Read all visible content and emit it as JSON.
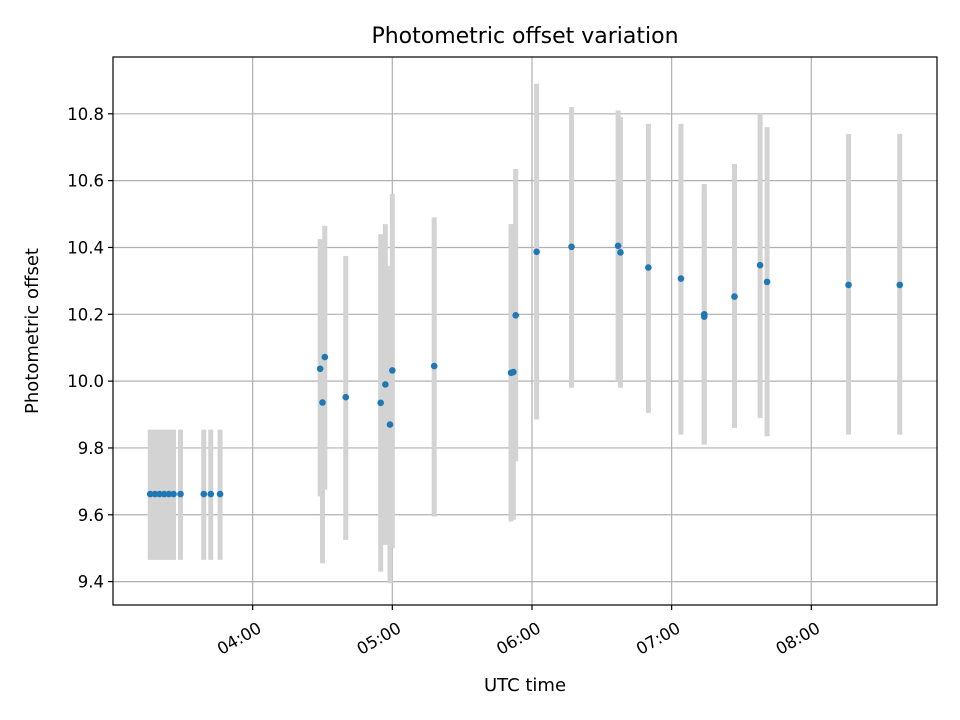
{
  "chart_data": {
    "type": "scatter",
    "title": "Photometric offset variation",
    "xlabel": "UTC time",
    "ylabel": "Photometric offset",
    "x_unit": "UTC time of day (HH:MM)",
    "xlim": [
      "03:00",
      "08:54"
    ],
    "ylim": [
      9.33,
      10.97
    ],
    "x_ticks": [
      "04:00",
      "05:00",
      "06:00",
      "07:00",
      "08:00"
    ],
    "y_ticks": [
      9.4,
      9.6,
      9.8,
      10.0,
      10.2,
      10.4,
      10.6,
      10.8
    ],
    "grid": true,
    "marker_color": "#1f77b4",
    "errorbar_color": "#d3d3d3",
    "points": [
      {
        "x": "03:16",
        "y": 9.662,
        "ylow": 9.465,
        "yhigh": 9.855
      },
      {
        "x": "03:18",
        "y": 9.662,
        "ylow": 9.465,
        "yhigh": 9.855
      },
      {
        "x": "03:20",
        "y": 9.662,
        "ylow": 9.465,
        "yhigh": 9.855
      },
      {
        "x": "03:22",
        "y": 9.662,
        "ylow": 9.465,
        "yhigh": 9.855
      },
      {
        "x": "03:24",
        "y": 9.662,
        "ylow": 9.465,
        "yhigh": 9.855
      },
      {
        "x": "03:26",
        "y": 9.662,
        "ylow": 9.465,
        "yhigh": 9.855
      },
      {
        "x": "03:29",
        "y": 9.662,
        "ylow": 9.465,
        "yhigh": 9.855
      },
      {
        "x": "03:39",
        "y": 9.662,
        "ylow": 9.465,
        "yhigh": 9.855
      },
      {
        "x": "03:42",
        "y": 9.662,
        "ylow": 9.465,
        "yhigh": 9.855
      },
      {
        "x": "03:46",
        "y": 9.662,
        "ylow": 9.465,
        "yhigh": 9.855
      },
      {
        "x": "04:29",
        "y": 10.037,
        "ylow": 9.655,
        "yhigh": 10.425
      },
      {
        "x": "04:30",
        "y": 9.936,
        "ylow": 9.455,
        "yhigh": 10.415
      },
      {
        "x": "04:31",
        "y": 10.072,
        "ylow": 9.675,
        "yhigh": 10.465
      },
      {
        "x": "04:40",
        "y": 9.952,
        "ylow": 9.525,
        "yhigh": 10.375
      },
      {
        "x": "04:55",
        "y": 9.935,
        "ylow": 9.43,
        "yhigh": 10.44
      },
      {
        "x": "04:57",
        "y": 9.99,
        "ylow": 9.51,
        "yhigh": 10.47
      },
      {
        "x": "04:59",
        "y": 9.87,
        "ylow": 9.395,
        "yhigh": 10.345
      },
      {
        "x": "05:00",
        "y": 10.032,
        "ylow": 9.5,
        "yhigh": 10.56
      },
      {
        "x": "05:18",
        "y": 10.045,
        "ylow": 9.595,
        "yhigh": 10.49
      },
      {
        "x": "05:51",
        "y": 10.025,
        "ylow": 9.58,
        "yhigh": 10.47
      },
      {
        "x": "05:52",
        "y": 10.027,
        "ylow": 9.585,
        "yhigh": 10.47
      },
      {
        "x": "05:53",
        "y": 10.197,
        "ylow": 9.76,
        "yhigh": 10.635
      },
      {
        "x": "06:02",
        "y": 10.387,
        "ylow": 9.885,
        "yhigh": 10.89
      },
      {
        "x": "06:17",
        "y": 10.402,
        "ylow": 9.98,
        "yhigh": 10.82
      },
      {
        "x": "06:37",
        "y": 10.405,
        "ylow": 10.0,
        "yhigh": 10.81
      },
      {
        "x": "06:38",
        "y": 10.385,
        "ylow": 9.98,
        "yhigh": 10.79
      },
      {
        "x": "06:50",
        "y": 10.34,
        "ylow": 9.905,
        "yhigh": 10.77
      },
      {
        "x": "07:04",
        "y": 10.307,
        "ylow": 9.84,
        "yhigh": 10.77
      },
      {
        "x": "07:14",
        "y": 10.2,
        "ylow": 9.815,
        "yhigh": 10.59
      },
      {
        "x": "07:14",
        "y": 10.193,
        "ylow": 9.81,
        "yhigh": 10.57
      },
      {
        "x": "07:27",
        "y": 10.253,
        "ylow": 9.86,
        "yhigh": 10.65
      },
      {
        "x": "07:38",
        "y": 10.347,
        "ylow": 9.89,
        "yhigh": 10.8
      },
      {
        "x": "07:41",
        "y": 10.297,
        "ylow": 9.835,
        "yhigh": 10.76
      },
      {
        "x": "08:16",
        "y": 10.288,
        "ylow": 9.84,
        "yhigh": 10.74
      },
      {
        "x": "08:38",
        "y": 10.288,
        "ylow": 9.84,
        "yhigh": 10.74
      }
    ]
  }
}
